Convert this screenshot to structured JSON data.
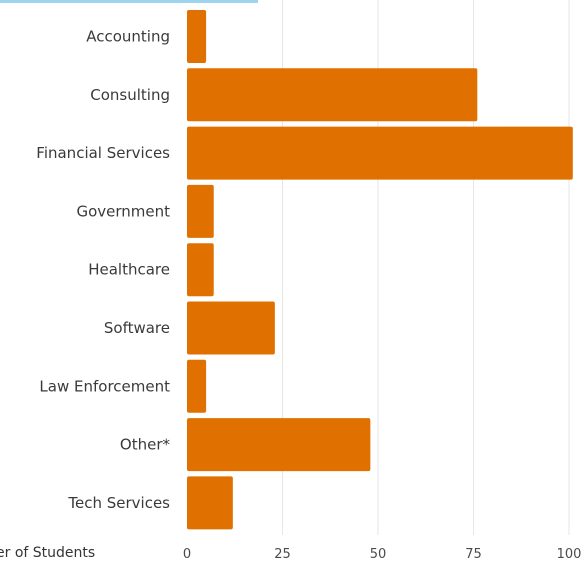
{
  "chart_data": {
    "type": "bar",
    "orientation": "horizontal",
    "categories": [
      "Accounting",
      "Consulting",
      "Financial Services",
      "Government",
      "Healthcare",
      "Software",
      "Law Enforcement",
      "Other*",
      "Tech Services"
    ],
    "values": [
      5,
      76,
      101,
      7,
      7,
      23,
      5,
      48,
      12
    ],
    "xlabel": "Number of Students",
    "xlabel_visible": "er of Students",
    "xticks": [
      "0",
      "25",
      "50",
      "75",
      "100"
    ],
    "xlim": [
      0,
      100
    ],
    "grid": true,
    "bar_color": "#e07100",
    "grid_color": "#e6e6e6"
  }
}
